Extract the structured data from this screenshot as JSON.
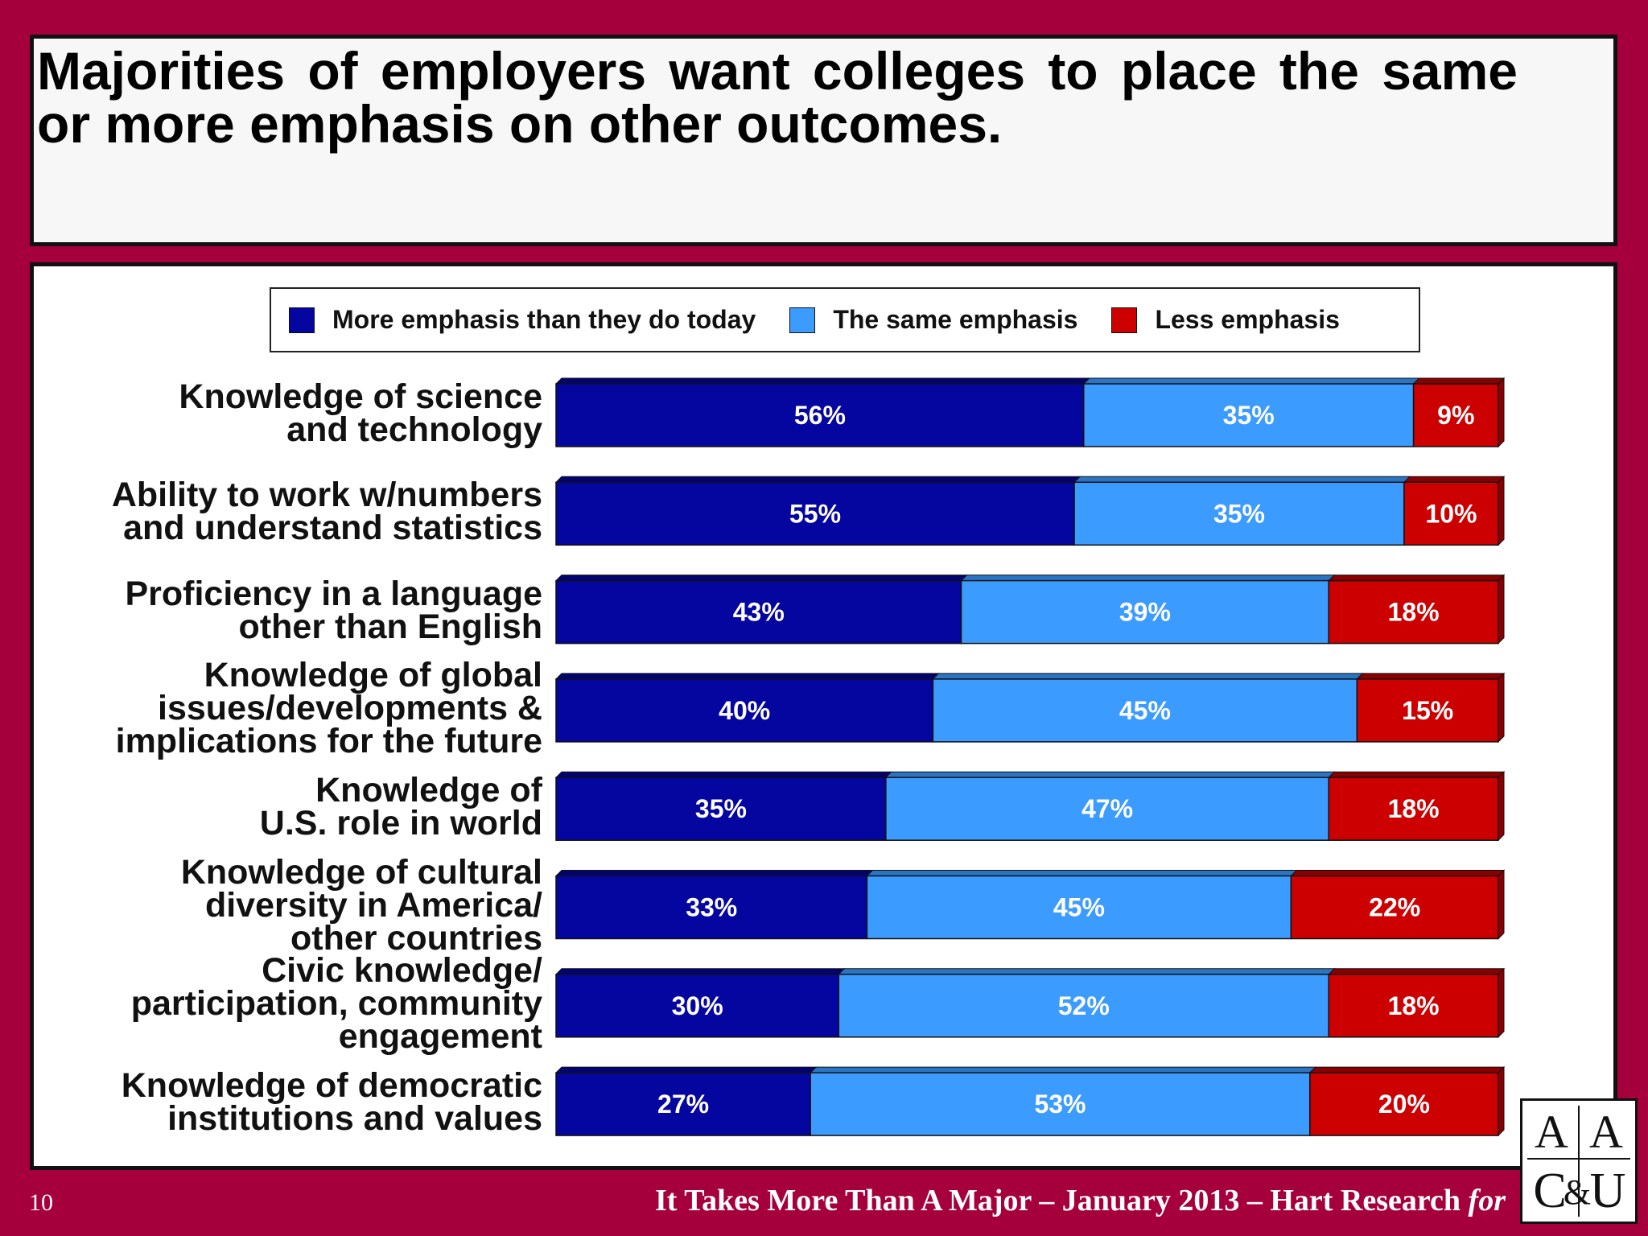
{
  "title": "Majorities of employers want colleges to place the same or more emphasis on other outcomes.",
  "footer": {
    "page_number": "10",
    "text": "It Takes More Than A Major – January 2013 – Hart Research",
    "for_word": "for"
  },
  "logo": {
    "text": "AAC&U"
  },
  "colors": {
    "more": "#0505a0",
    "same": "#3c9bff",
    "less": "#cc0000"
  },
  "chart_data": {
    "type": "bar",
    "orientation": "horizontal",
    "stacked": true,
    "xlim": [
      0,
      100
    ],
    "legend_position": "top",
    "series_names": [
      "More emphasis than they do today",
      "The same emphasis",
      "Less emphasis"
    ],
    "rows": [
      {
        "label": "Knowledge of science\nand technology",
        "values": [
          56,
          35,
          9
        ],
        "labels": [
          "56%",
          "35%",
          "9%"
        ]
      },
      {
        "label": "Ability to work w/numbers\nand understand statistics",
        "values": [
          55,
          35,
          10
        ],
        "labels": [
          "55%",
          "35%",
          "10%"
        ]
      },
      {
        "label": "Proficiency in a language\nother than English",
        "values": [
          43,
          39,
          18
        ],
        "labels": [
          "43%",
          "39%",
          "18%"
        ]
      },
      {
        "label": "Knowledge of global\nissues/developments &\nimplications for the future",
        "values": [
          40,
          45,
          15
        ],
        "labels": [
          "40%",
          "45%",
          "15%"
        ]
      },
      {
        "label": "Knowledge of\nU.S. role in world",
        "values": [
          35,
          47,
          18
        ],
        "labels": [
          "35%",
          "47%",
          "18%"
        ]
      },
      {
        "label": "Knowledge of cultural\ndiversity in America/\nother countries",
        "values": [
          33,
          45,
          22
        ],
        "labels": [
          "33%",
          "45%",
          "22%"
        ]
      },
      {
        "label": "Civic knowledge/\nparticipation, community\nengagement",
        "values": [
          30,
          52,
          18
        ],
        "labels": [
          "30%",
          "52%",
          "18%"
        ]
      },
      {
        "label": "Knowledge of democratic\ninstitutions and values",
        "values": [
          27,
          53,
          20
        ],
        "labels": [
          "27%",
          "53%",
          "20%"
        ]
      }
    ]
  }
}
